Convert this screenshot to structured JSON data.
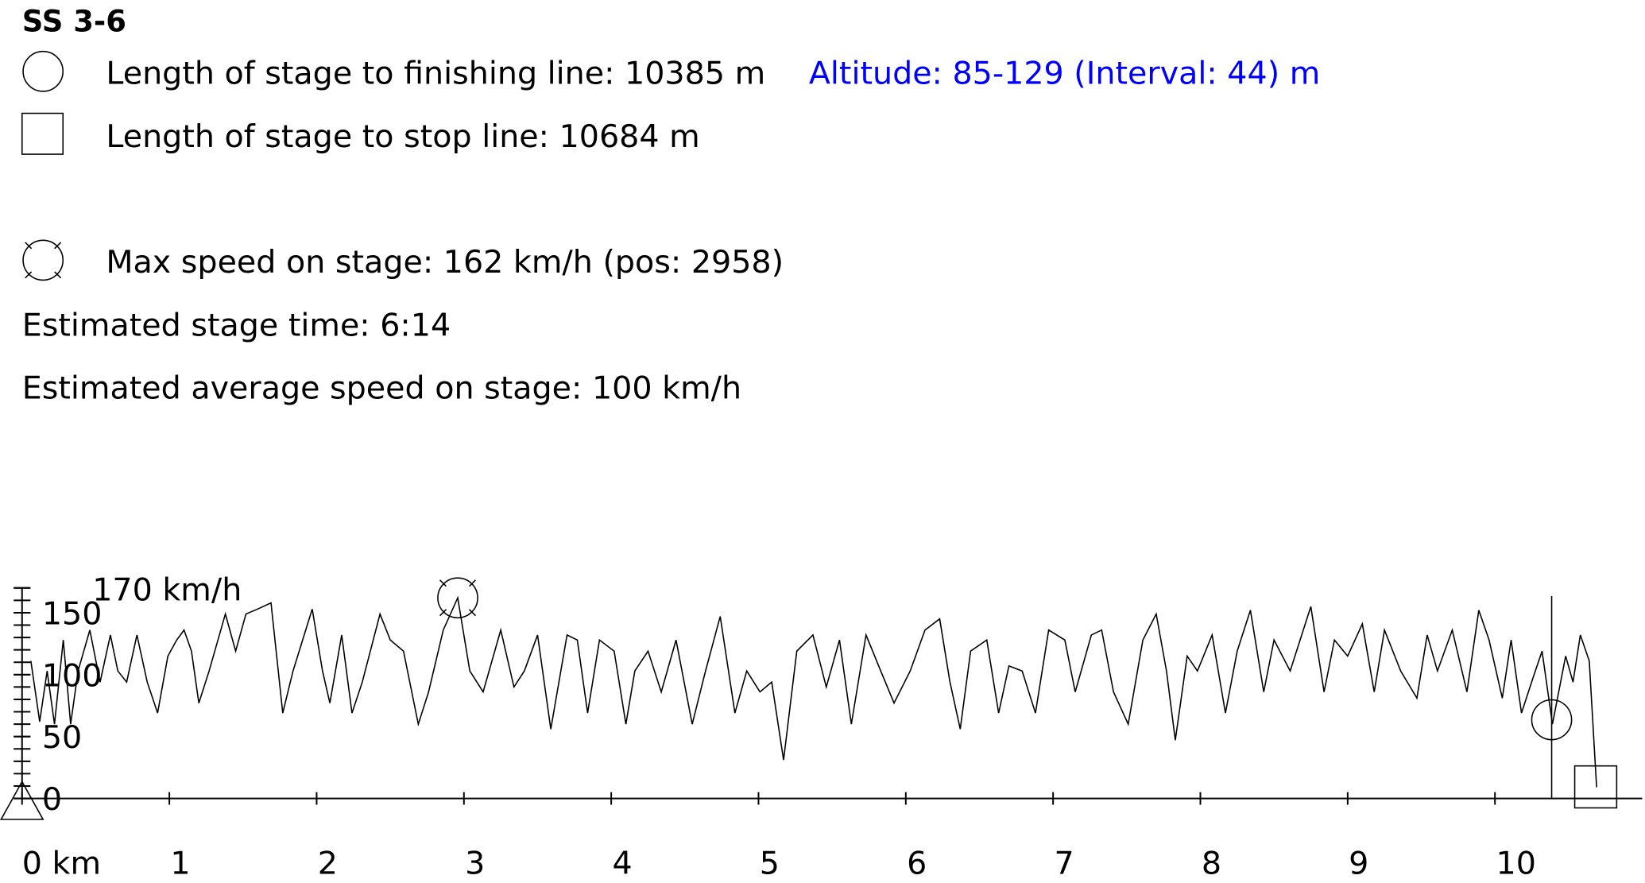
{
  "header": {
    "title": "SS 3-6",
    "finish": {
      "label": "Length of stage to finishing line:",
      "value": 10385,
      "unit": "m"
    },
    "altitude": "Altitude: 85-129 (Interval: 44) m",
    "stop": {
      "label": "Length of stage to stop line:",
      "value": 10684,
      "unit": "m"
    },
    "max_speed": {
      "label": "Max speed on stage:",
      "value": 162,
      "unit": "km/h",
      "pos_open": "(pos:",
      "pos": 2958,
      "pos_close": ")"
    },
    "stage_time": {
      "label": "Estimated stage time:",
      "value": "6:14"
    },
    "avg_speed": {
      "label": "Estimated average speed on stage:",
      "value": 100,
      "unit": "km/h"
    }
  },
  "chart_data": {
    "type": "line",
    "color": "#000000",
    "x": [
      0.06,
      0.12,
      0.17,
      0.22,
      0.28,
      0.33,
      0.38,
      0.46,
      0.53,
      0.6,
      0.65,
      0.71,
      0.78,
      0.85,
      0.92,
      0.99,
      1.05,
      1.1,
      1.15,
      1.2,
      1.27,
      1.38,
      1.45,
      1.52,
      1.6,
      1.69,
      1.77,
      1.84,
      1.97,
      2.04,
      2.09,
      2.17,
      2.24,
      2.31,
      2.43,
      2.5,
      2.59,
      2.69,
      2.76,
      2.86,
      2.958,
      3.04,
      3.13,
      3.25,
      3.34,
      3.41,
      3.5,
      3.59,
      3.7,
      3.77,
      3.84,
      3.92,
      4.02,
      4.1,
      4.16,
      4.25,
      4.34,
      4.44,
      4.55,
      4.64,
      4.74,
      4.84,
      4.92,
      5.01,
      5.09,
      5.17,
      5.26,
      5.37,
      5.46,
      5.55,
      5.63,
      5.73,
      5.83,
      5.92,
      6.03,
      6.13,
      6.23,
      6.3,
      6.37,
      6.44,
      6.55,
      6.63,
      6.7,
      6.79,
      6.88,
      6.97,
      7.08,
      7.15,
      7.26,
      7.33,
      7.41,
      7.51,
      7.61,
      7.7,
      7.77,
      7.83,
      7.91,
      7.98,
      8.08,
      8.17,
      8.25,
      8.34,
      8.43,
      8.5,
      8.61,
      8.75,
      8.84,
      8.91,
      9.0,
      9.1,
      9.18,
      9.25,
      9.36,
      9.47,
      9.54,
      9.61,
      9.71,
      9.81,
      9.89,
      9.96,
      10.05,
      10.11,
      10.18,
      10.26,
      10.32,
      10.39,
      10.48,
      10.53,
      10.58,
      10.64,
      10.69
    ],
    "values": [
      111,
      62,
      103,
      60,
      128,
      60,
      103,
      136,
      94,
      132,
      103,
      94,
      132,
      94,
      69,
      115,
      128,
      136,
      119,
      77,
      103,
      149,
      119,
      149,
      153,
      158,
      69,
      103,
      153,
      103,
      77,
      132,
      69,
      94,
      149,
      128,
      119,
      60,
      86,
      136,
      162,
      103,
      86,
      136,
      90,
      103,
      132,
      56,
      132,
      128,
      69,
      128,
      119,
      60,
      103,
      119,
      86,
      128,
      60,
      103,
      147,
      69,
      103,
      86,
      94,
      31,
      119,
      132,
      90,
      128,
      60,
      132,
      103,
      77,
      103,
      136,
      145,
      94,
      56,
      119,
      128,
      69,
      107,
      103,
      69,
      136,
      128,
      86,
      132,
      136,
      86,
      60,
      128,
      149,
      103,
      47,
      115,
      103,
      132,
      69,
      119,
      152,
      86,
      128,
      103,
      155,
      86,
      128,
      115,
      141,
      86,
      136,
      103,
      81,
      132,
      103,
      136,
      86,
      152,
      128,
      81,
      128,
      69,
      98,
      119,
      60,
      115,
      94,
      132,
      111,
      9
    ],
    "xlim": [
      0,
      11
    ],
    "xticks": [
      {
        "value": 0,
        "label": "0 km"
      },
      1,
      2,
      3,
      4,
      5,
      6,
      7,
      8,
      9,
      10
    ],
    "ylim": [
      0,
      170
    ],
    "yticks": [
      0,
      50,
      100,
      150,
      {
        "value": 170,
        "label": "170 km/h"
      }
    ],
    "minor_yticks": [
      0,
      10,
      20,
      30,
      40,
      50,
      60,
      70,
      80,
      90,
      100,
      110,
      120,
      130,
      140,
      150,
      160,
      170
    ]
  }
}
